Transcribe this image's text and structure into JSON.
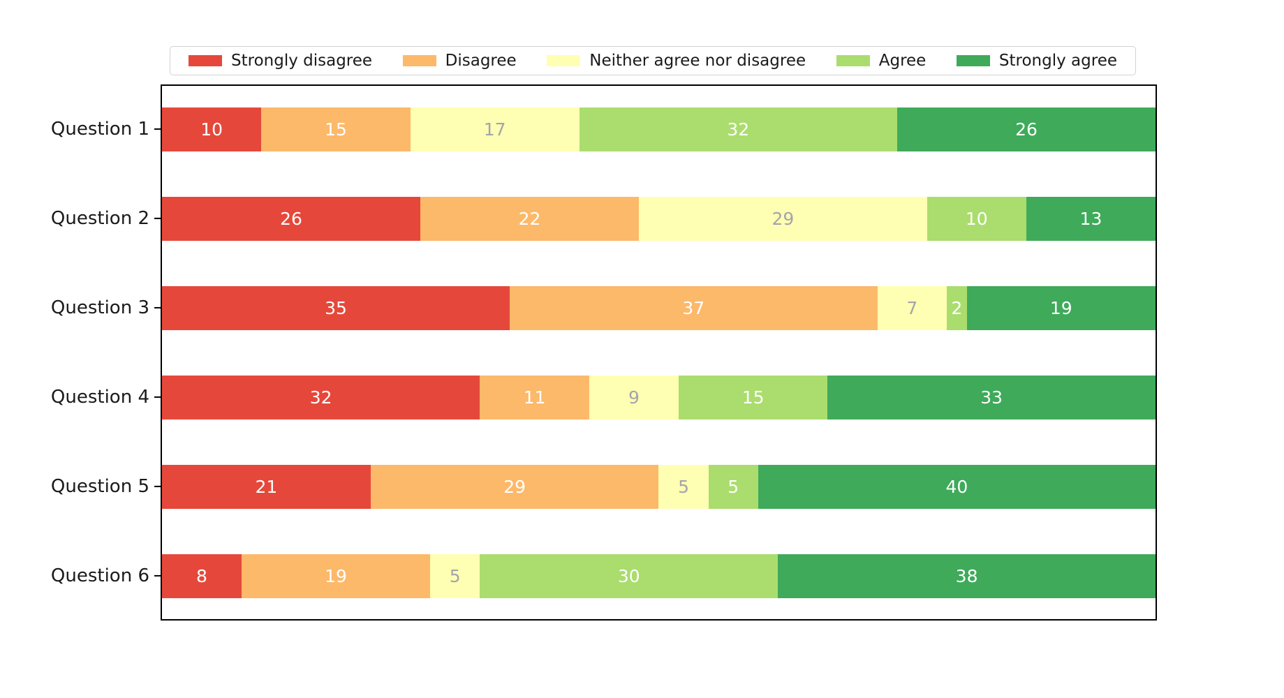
{
  "chart_data": {
    "type": "bar",
    "orientation": "horizontal",
    "stacked": true,
    "title": "",
    "xlabel": "",
    "ylabel": "",
    "xlim": [
      0,
      100
    ],
    "grid": false,
    "legend_position": "top",
    "categories": [
      "Question 1",
      "Question 2",
      "Question 3",
      "Question 4",
      "Question 5",
      "Question 6"
    ],
    "series": [
      {
        "name": "Strongly disagree",
        "color": "#e5483b",
        "label_color": "#ffffff",
        "values": [
          10,
          26,
          35,
          32,
          21,
          8
        ]
      },
      {
        "name": "Disagree",
        "color": "#fcb96a",
        "label_color": "#ffffff",
        "values": [
          15,
          22,
          37,
          11,
          29,
          19
        ]
      },
      {
        "name": "Neither agree nor disagree",
        "color": "#feffb3",
        "label_color": "#a4a4ab",
        "values": [
          17,
          29,
          7,
          9,
          5,
          5
        ]
      },
      {
        "name": "Agree",
        "color": "#aadd6d",
        "label_color": "#ffffff",
        "values": [
          32,
          10,
          2,
          15,
          5,
          30
        ]
      },
      {
        "name": "Strongly agree",
        "color": "#3eaa5a",
        "label_color": "#ffffff",
        "values": [
          26,
          13,
          19,
          33,
          40,
          38
        ]
      }
    ],
    "rows": [
      {
        "category": "Question 1",
        "values": [
          10,
          15,
          17,
          32,
          26
        ]
      },
      {
        "category": "Question 2",
        "values": [
          26,
          22,
          29,
          10,
          13
        ]
      },
      {
        "category": "Question 3",
        "values": [
          35,
          37,
          7,
          2,
          19
        ]
      },
      {
        "category": "Question 4",
        "values": [
          32,
          11,
          9,
          15,
          33
        ]
      },
      {
        "category": "Question 5",
        "values": [
          21,
          29,
          5,
          5,
          40
        ]
      },
      {
        "category": "Question 6",
        "values": [
          8,
          19,
          5,
          30,
          38
        ]
      }
    ]
  },
  "style": {
    "plot_border_color": "#000000",
    "legend_border_color": "#d2d2d2",
    "background_color": "#ffffff",
    "tick_label_color": "#1a1a1a"
  }
}
